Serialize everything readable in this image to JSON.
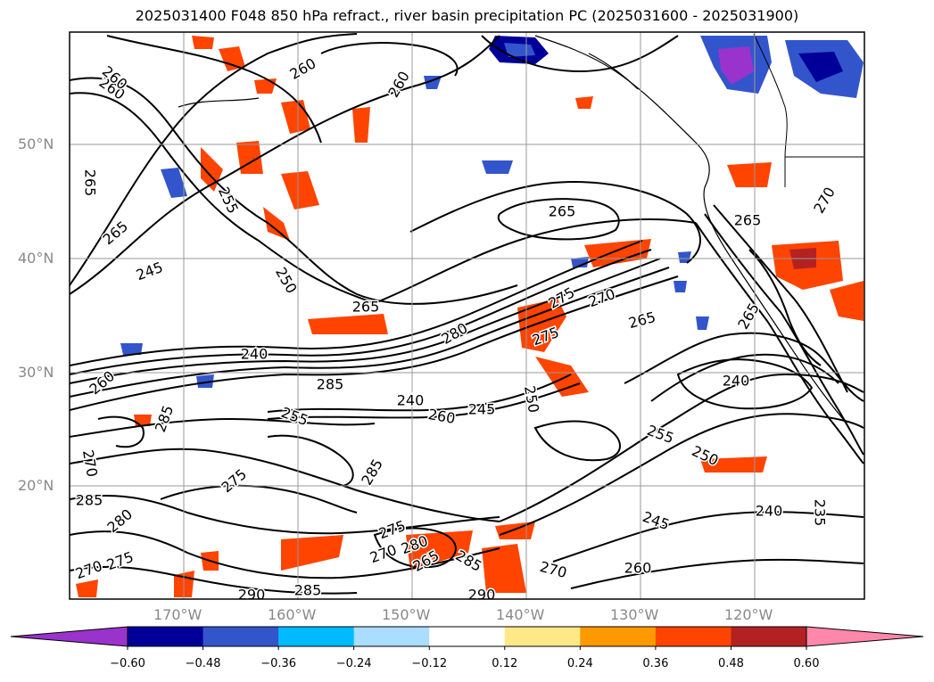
{
  "title": "2025031400 F048 850 hPa refract., river basin precipitation PC (2025031600 - 2025031900)",
  "lat_labels": [
    "50°N",
    "40°N",
    "30°N",
    "20°N"
  ],
  "lon_labels": [
    "170°W",
    "160°W",
    "150°W",
    "140°W",
    "130°W",
    "120°W"
  ],
  "colorbar": {
    "ticks": [
      "−0.60",
      "−0.48",
      "−0.36",
      "−0.24",
      "−0.12",
      "0.12",
      "0.24",
      "0.36",
      "0.48",
      "0.60"
    ],
    "colors": [
      "#9933cc",
      "#000099",
      "#3355cc",
      "#00bbff",
      "#aaddff",
      "#ffffff",
      "#ffe888",
      "#ff9900",
      "#ff4400",
      "#b22222",
      "#ff88aa"
    ]
  },
  "contour_labels": [
    {
      "text": "260"
    },
    {
      "text": "265"
    },
    {
      "text": "265"
    },
    {
      "text": "270"
    },
    {
      "text": "245"
    },
    {
      "text": "255"
    },
    {
      "text": "250"
    },
    {
      "text": "265"
    },
    {
      "text": "240"
    },
    {
      "text": "260"
    },
    {
      "text": "285"
    },
    {
      "text": "280"
    },
    {
      "text": "275"
    },
    {
      "text": "270"
    },
    {
      "text": "265"
    },
    {
      "text": "275"
    },
    {
      "text": "265"
    },
    {
      "text": "240"
    },
    {
      "text": "285"
    },
    {
      "text": "255"
    },
    {
      "text": "240"
    },
    {
      "text": "260"
    },
    {
      "text": "245"
    },
    {
      "text": "250"
    },
    {
      "text": "255"
    },
    {
      "text": "250"
    },
    {
      "text": "275"
    },
    {
      "text": "285"
    },
    {
      "text": "270"
    },
    {
      "text": "285"
    },
    {
      "text": "280"
    },
    {
      "text": "270"
    },
    {
      "text": "275"
    },
    {
      "text": "275"
    },
    {
      "text": "280"
    },
    {
      "text": "270"
    },
    {
      "text": "265"
    },
    {
      "text": "285"
    },
    {
      "text": "290"
    },
    {
      "text": "285"
    },
    {
      "text": "290"
    },
    {
      "text": "270"
    },
    {
      "text": "260"
    },
    {
      "text": "245"
    },
    {
      "text": "240"
    },
    {
      "text": "235"
    },
    {
      "text": "260"
    },
    {
      "text": "260"
    },
    {
      "text": "265"
    },
    {
      "text": "265"
    },
    {
      "text": "260"
    }
  ]
}
